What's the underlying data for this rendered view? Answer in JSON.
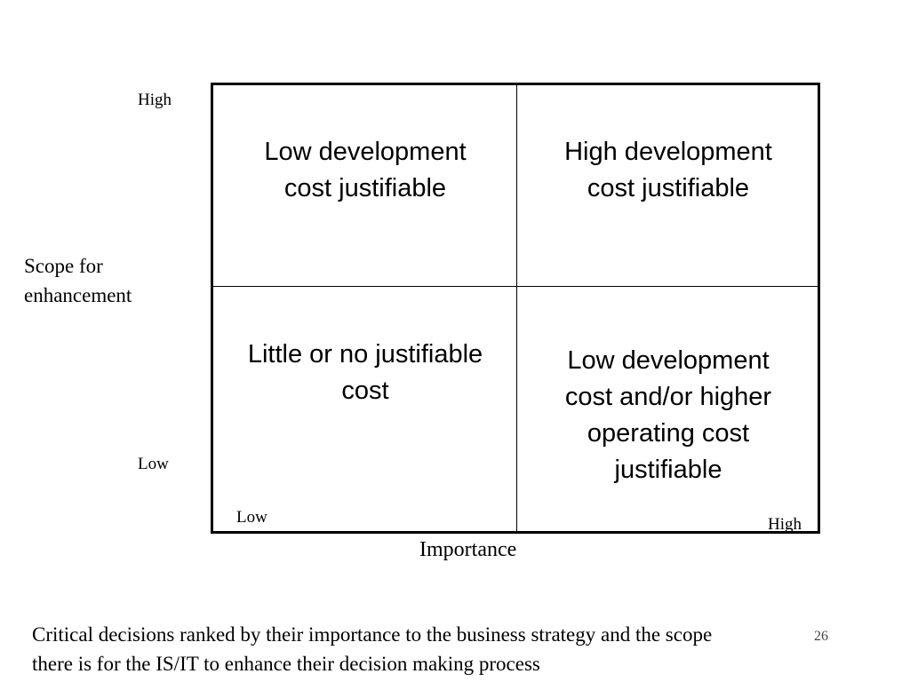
{
  "y_axis": {
    "high_label": "High",
    "low_label": "Low",
    "title_line1": "Scope for",
    "title_line2": "enhancement"
  },
  "x_axis": {
    "low_label": "Low",
    "high_label": "High",
    "title": "Importance"
  },
  "matrix": {
    "cells": {
      "top_left": [
        "Low development",
        "cost justifiable"
      ],
      "top_right": [
        "High development",
        "cost justifiable"
      ],
      "bottom_left": [
        "Little or no justifiable",
        "cost"
      ],
      "bottom_right": [
        "Low development",
        "cost and/or higher",
        "operating cost",
        "justifiable"
      ]
    }
  },
  "caption": {
    "line1": "Critical decisions ranked by their importance to the business strategy and the scope",
    "line2": "there is for the IS/IT to enhance their decision making process"
  },
  "page_number": "26"
}
